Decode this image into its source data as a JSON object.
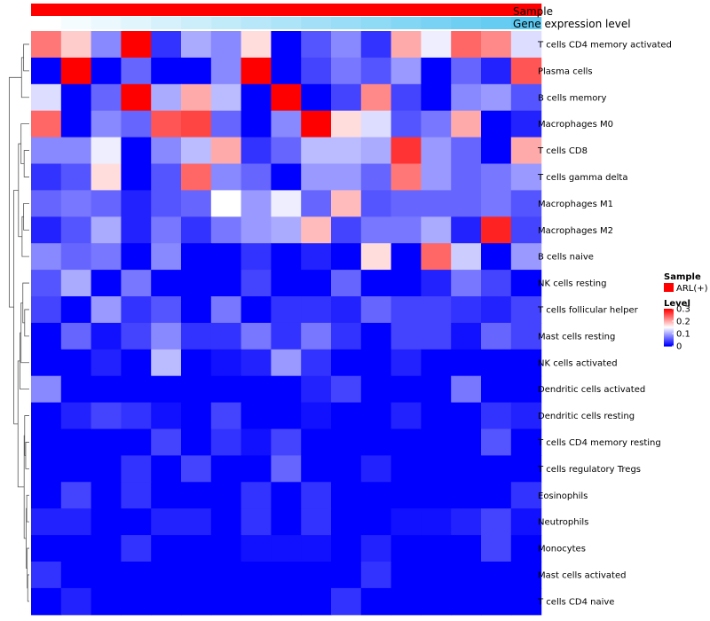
{
  "chart_data": {
    "type": "heatmap",
    "annotation_labels": [
      "Sample",
      "Gene expression level"
    ],
    "rows": [
      "T cells CD4 memory activated",
      "Plasma cells",
      "B cells memory",
      "Macrophages M0",
      "T cells CD8",
      "T cells gamma delta",
      "Macrophages M1",
      "Macrophages M2",
      "B cells naive",
      "NK cells resting",
      "T cells follicular helper",
      "Mast cells resting",
      "NK cells activated",
      "Dendritic cells activated",
      "Dendritic cells resting",
      "T cells CD4 memory resting",
      "T cells regulatory  Tregs",
      "Eosinophils",
      "Neutrophils",
      "Monocytes",
      "Mast cells activated",
      "T cells CD4 naive"
    ],
    "values": [
      [
        0.23,
        0.18,
        0.08,
        0.3,
        0.03,
        0.1,
        0.08,
        0.17,
        0.0,
        0.05,
        0.08,
        0.03,
        0.2,
        0.14,
        0.24,
        0.22,
        0.13
      ],
      [
        0.0,
        0.3,
        0.0,
        0.06,
        0.0,
        0.0,
        0.08,
        0.3,
        0.0,
        0.04,
        0.07,
        0.05,
        0.09,
        0.0,
        0.06,
        0.02,
        0.25
      ],
      [
        0.13,
        0.0,
        0.06,
        0.3,
        0.1,
        0.2,
        0.11,
        0.0,
        0.3,
        0.0,
        0.04,
        0.22,
        0.04,
        0.0,
        0.08,
        0.09,
        0.05
      ],
      [
        0.24,
        0.0,
        0.08,
        0.06,
        0.25,
        0.26,
        0.06,
        0.0,
        0.08,
        0.3,
        0.17,
        0.13,
        0.05,
        0.07,
        0.2,
        0.0,
        0.02
      ],
      [
        0.08,
        0.08,
        0.14,
        0.0,
        0.08,
        0.11,
        0.2,
        0.03,
        0.06,
        0.11,
        0.11,
        0.1,
        0.27,
        0.09,
        0.06,
        0.0,
        0.2
      ],
      [
        0.03,
        0.05,
        0.17,
        0.0,
        0.05,
        0.24,
        0.08,
        0.06,
        0.0,
        0.09,
        0.09,
        0.06,
        0.23,
        0.09,
        0.06,
        0.07,
        0.09
      ],
      [
        0.06,
        0.07,
        0.06,
        0.02,
        0.05,
        0.06,
        0.15,
        0.09,
        0.14,
        0.06,
        0.19,
        0.05,
        0.06,
        0.06,
        0.06,
        0.07,
        0.05
      ],
      [
        0.02,
        0.05,
        0.1,
        0.02,
        0.07,
        0.03,
        0.07,
        0.09,
        0.1,
        0.19,
        0.04,
        0.07,
        0.07,
        0.1,
        0.02,
        0.28,
        0.04
      ],
      [
        0.08,
        0.06,
        0.07,
        0.0,
        0.08,
        0.0,
        0.0,
        0.03,
        0.0,
        0.02,
        0.0,
        0.17,
        0.0,
        0.24,
        0.12,
        0.0,
        0.09
      ],
      [
        0.05,
        0.1,
        0.0,
        0.07,
        0.0,
        0.0,
        0.0,
        0.04,
        0.0,
        0.0,
        0.06,
        0.0,
        0.0,
        0.02,
        0.07,
        0.04,
        0.0
      ],
      [
        0.04,
        0.0,
        0.09,
        0.03,
        0.05,
        0.0,
        0.07,
        0.0,
        0.03,
        0.03,
        0.02,
        0.06,
        0.04,
        0.04,
        0.03,
        0.02,
        0.04
      ],
      [
        0.0,
        0.06,
        0.01,
        0.04,
        0.08,
        0.03,
        0.03,
        0.07,
        0.03,
        0.07,
        0.03,
        0.0,
        0.04,
        0.04,
        0.01,
        0.06,
        0.04
      ],
      [
        0.0,
        0.0,
        0.02,
        0.0,
        0.11,
        0.0,
        0.01,
        0.02,
        0.09,
        0.03,
        0.0,
        0.0,
        0.02,
        0.0,
        0.0,
        0.0,
        0.0
      ],
      [
        0.08,
        0.0,
        0.0,
        0.0,
        0.0,
        0.0,
        0.0,
        0.0,
        0.0,
        0.02,
        0.04,
        0.0,
        0.0,
        0.0,
        0.07,
        0.0,
        0.0
      ],
      [
        0.0,
        0.02,
        0.04,
        0.03,
        0.01,
        0.0,
        0.04,
        0.0,
        0.0,
        0.01,
        0.0,
        0.0,
        0.02,
        0.0,
        0.0,
        0.03,
        0.02
      ],
      [
        0.0,
        0.0,
        0.0,
        0.0,
        0.04,
        0.0,
        0.03,
        0.01,
        0.04,
        0.0,
        0.0,
        0.0,
        0.0,
        0.0,
        0.0,
        0.05,
        0.0
      ],
      [
        0.0,
        0.0,
        0.0,
        0.03,
        0.0,
        0.04,
        0.0,
        0.0,
        0.06,
        0.0,
        0.0,
        0.02,
        0.0,
        0.0,
        0.0,
        0.0,
        0.0
      ],
      [
        0.0,
        0.04,
        0.0,
        0.03,
        0.0,
        0.0,
        0.0,
        0.03,
        0.0,
        0.03,
        0.0,
        0.0,
        0.0,
        0.0,
        0.0,
        0.0,
        0.03
      ],
      [
        0.02,
        0.02,
        0.0,
        0.0,
        0.02,
        0.02,
        0.0,
        0.03,
        0.0,
        0.03,
        0.0,
        0.0,
        0.01,
        0.01,
        0.02,
        0.04,
        0.01
      ],
      [
        0.0,
        0.0,
        0.0,
        0.03,
        0.0,
        0.0,
        0.0,
        0.01,
        0.01,
        0.01,
        0.0,
        0.02,
        0.0,
        0.0,
        0.0,
        0.04,
        0.0
      ],
      [
        0.03,
        0.0,
        0.0,
        0.0,
        0.0,
        0.0,
        0.0,
        0.0,
        0.0,
        0.0,
        0.0,
        0.03,
        0.0,
        0.0,
        0.0,
        0.0,
        0.0
      ],
      [
        0.0,
        0.02,
        0.0,
        0.0,
        0.0,
        0.0,
        0.0,
        0.0,
        0.0,
        0.0,
        0.03,
        0.0,
        0.0,
        0.0,
        0.0,
        0.0,
        0.0
      ]
    ],
    "sample_group": [
      "ARL(+)",
      "ARL(+)",
      "ARL(+)",
      "ARL(+)",
      "ARL(+)",
      "ARL(+)",
      "ARL(+)",
      "ARL(+)",
      "ARL(+)",
      "ARL(+)",
      "ARL(+)",
      "ARL(+)",
      "ARL(+)",
      "ARL(+)",
      "ARL(+)",
      "ARL(+)",
      "ARL(+)"
    ],
    "gene_expression_level": [
      0.0,
      0.06,
      0.12,
      0.18,
      0.25,
      0.31,
      0.37,
      0.43,
      0.5,
      0.56,
      0.62,
      0.68,
      0.75,
      0.81,
      0.87,
      0.93,
      1.0
    ],
    "color_scale": {
      "low": "#0000ff",
      "mid": "#ffffff",
      "high": "#ff0000",
      "min": 0,
      "mid_value": 0.15,
      "max": 0.3
    },
    "expression_colors": {
      "low": "#ffffff",
      "high": "#5ac8f0"
    },
    "sample_color": "#ff0000",
    "legend": {
      "sample_title": "Sample",
      "sample_label": "ARL(+)",
      "level_title": "Level",
      "level_ticks": [
        "0.3",
        "0.2",
        "0.1",
        "0"
      ],
      "level_tick_values": [
        0.3,
        0.2,
        0.1,
        0
      ]
    }
  }
}
